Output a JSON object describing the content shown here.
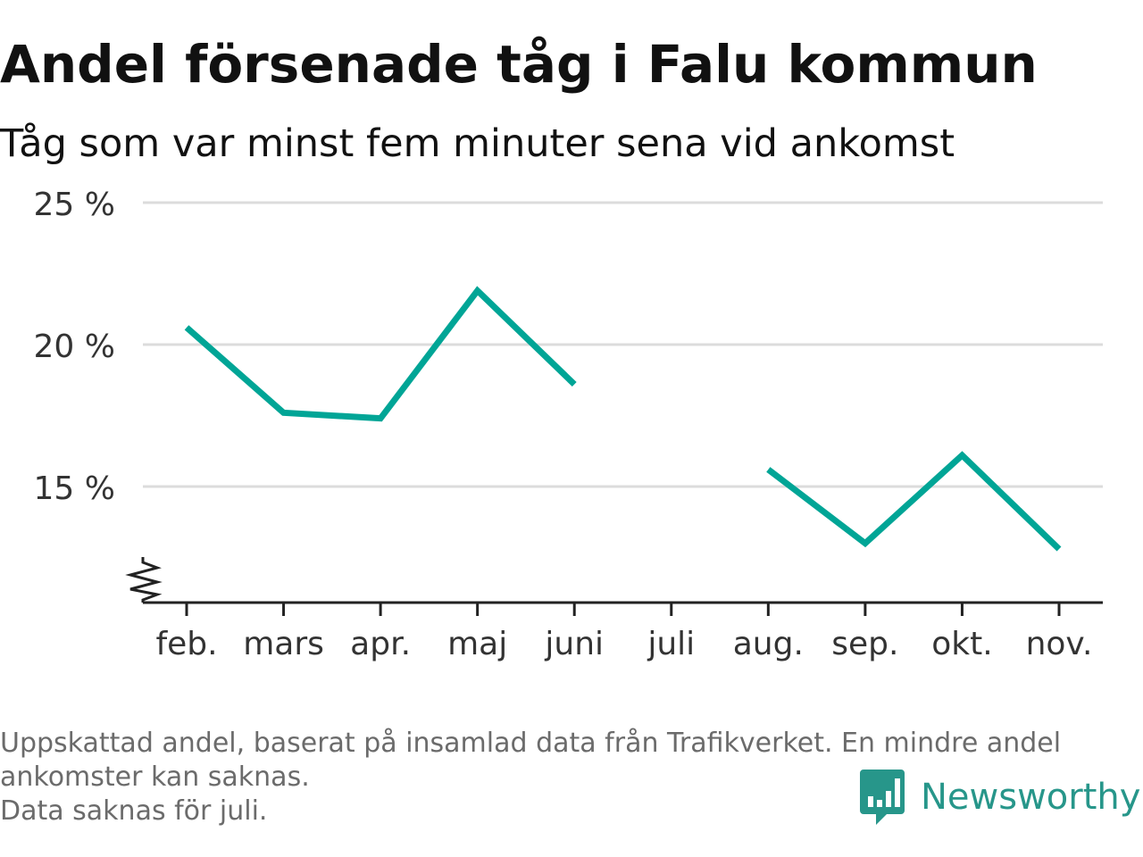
{
  "title": "Andel försenade tåg i Falu kommun",
  "subtitle": "Tåg som var minst fem minuter sena vid ankomst",
  "footnote": {
    "line1": "Uppskattad andel, baserat på insamlad data från Trafikverket. En mindre andel",
    "line2": "ankomster kan saknas.",
    "line3": "Data saknas för juli."
  },
  "brand": {
    "name": "Newsworthy",
    "icon": "bar-chart-speech-bubble-icon",
    "color": "#27968a"
  },
  "chart_data": {
    "type": "line",
    "categories": [
      "feb.",
      "mars",
      "apr.",
      "maj",
      "juni",
      "juli",
      "aug.",
      "sep.",
      "okt.",
      "nov."
    ],
    "series": [
      {
        "values": [
          20.6,
          17.6,
          17.4,
          21.9,
          18.6,
          null,
          15.6,
          13.0,
          16.1,
          12.8
        ],
        "color": "#00a596"
      }
    ],
    "yticks": [
      15,
      20,
      25
    ],
    "ytick_labels": [
      "15 %",
      "20 %",
      "25 %"
    ],
    "ylim": [
      11,
      25
    ],
    "axis_break": true,
    "grid": true,
    "xlabel": "",
    "ylabel": ""
  }
}
